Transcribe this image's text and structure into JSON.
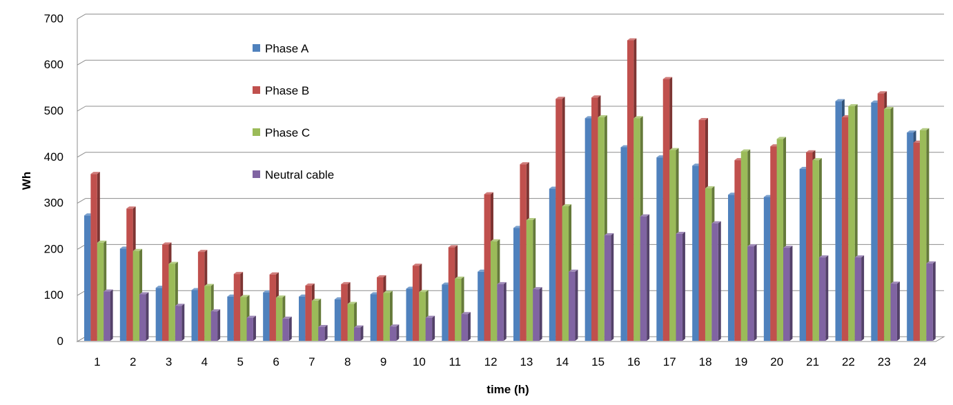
{
  "chart_data": {
    "type": "bar",
    "style": "3d-clustered-column",
    "title": "",
    "xlabel": "time (h)",
    "ylabel": "Wh",
    "ylim": [
      0,
      700
    ],
    "yticks": [
      0,
      100,
      200,
      300,
      400,
      500,
      600,
      700
    ],
    "grid": true,
    "legend_position": "upper-left inside",
    "categories": [
      "1",
      "2",
      "3",
      "4",
      "5",
      "6",
      "7",
      "8",
      "9",
      "10",
      "11",
      "12",
      "13",
      "14",
      "15",
      "16",
      "17",
      "18",
      "19",
      "20",
      "21",
      "22",
      "23",
      "24"
    ],
    "series": [
      {
        "name": "Phase A",
        "color": "#4F81BD",
        "values": [
          272,
          200,
          115,
          110,
          96,
          105,
          96,
          90,
          101,
          113,
          122,
          150,
          245,
          330,
          483,
          420,
          398,
          380,
          317,
          312,
          373,
          520,
          517,
          452
        ]
      },
      {
        "name": "Phase B",
        "color": "#C0504D",
        "values": [
          362,
          287,
          209,
          193,
          145,
          144,
          120,
          123,
          138,
          163,
          203,
          318,
          383,
          525,
          528,
          652,
          568,
          479,
          392,
          422,
          409,
          485,
          537,
          430
        ]
      },
      {
        "name": "Phase C",
        "color": "#9BBB59",
        "values": [
          213,
          195,
          167,
          119,
          95,
          94,
          87,
          80,
          104,
          106,
          135,
          216,
          262,
          292,
          485,
          483,
          414,
          331,
          411,
          438,
          392,
          509,
          503,
          457
        ]
      },
      {
        "name": "Neutral cable",
        "color": "#8064A2",
        "values": [
          107,
          101,
          76,
          64,
          50,
          48,
          30,
          29,
          31,
          50,
          58,
          123,
          112,
          150,
          229,
          270,
          232,
          255,
          205,
          202,
          181,
          181,
          124,
          168
        ]
      }
    ]
  }
}
